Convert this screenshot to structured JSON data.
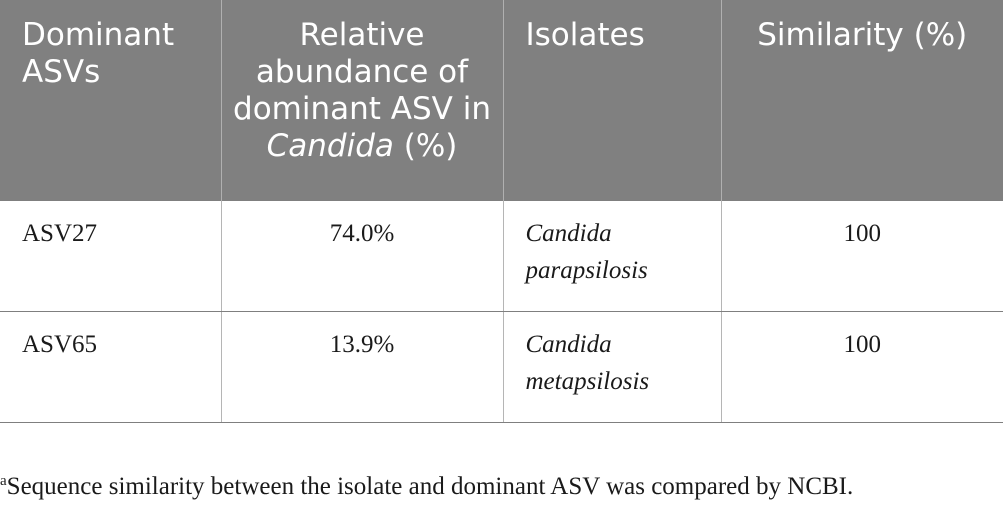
{
  "table": {
    "headers": [
      "Dominant ASVs",
      "Relative abundance of dominant ASV in",
      "Isolates",
      "Similarity (%)"
    ],
    "header_genus_italic": "Candida",
    "header_genus_suffix": " (%)",
    "rows": [
      {
        "asv": "ASV27",
        "abundance": "74.0%",
        "isolate_genus": "Candida",
        "isolate_species": "parapsilosis",
        "similarity": "100"
      },
      {
        "asv": "ASV65",
        "abundance": "13.9%",
        "isolate_genus": "Candida",
        "isolate_species": "metapsilosis",
        "similarity": "100"
      }
    ]
  },
  "footnote": {
    "marker": "a",
    "text": "Sequence similarity between the isolate and dominant ASV was compared by NCBI."
  }
}
